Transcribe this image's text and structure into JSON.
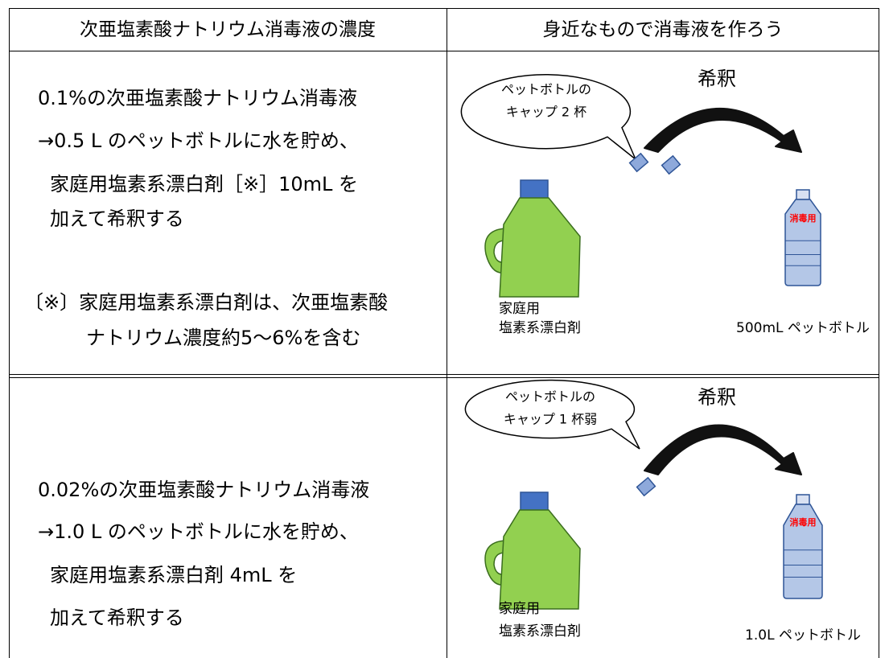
{
  "table": {
    "headers": [
      "次亜塩素酸ナトリウム消毒液の濃度",
      "身近なもので消毒液を作ろう"
    ],
    "rows": [
      {
        "lines": [
          "0.1%の次亜塩素酸ナトリウム消毒液",
          "→0.5 L のペットボトルに水を貯め、",
          "家庭用塩素系漂白剤［※］10mL を",
          "加えて希釈する"
        ],
        "note": [
          "〔※〕家庭用塩素系漂白剤は、次亜塩素酸",
          "ナトリウム濃度約5～6%を含む"
        ],
        "illustration": {
          "bubble": [
            "ペットボトルの",
            "キャップ 2 杯"
          ],
          "arrow_label": "希釈",
          "bottle_label": "消毒用",
          "left_caption": [
            "家庭用",
            "塩素系漂白剤"
          ],
          "right_caption": "500mL ペットボトル"
        }
      },
      {
        "lines": [
          "0.02%の次亜塩素酸ナトリウム消毒液",
          "→1.0 L のペットボトルに水を貯め、",
          "家庭用塩素系漂白剤 4mL を",
          "加えて希釈する"
        ],
        "illustration": {
          "bubble": [
            "ペットボトルの",
            "キャップ 1 杯弱"
          ],
          "arrow_label": "希釈",
          "bottle_label": "消毒用",
          "left_caption": [
            "家庭用",
            "塩素系漂白剤"
          ],
          "right_caption": "1.0L ペットボトル"
        }
      }
    ]
  }
}
